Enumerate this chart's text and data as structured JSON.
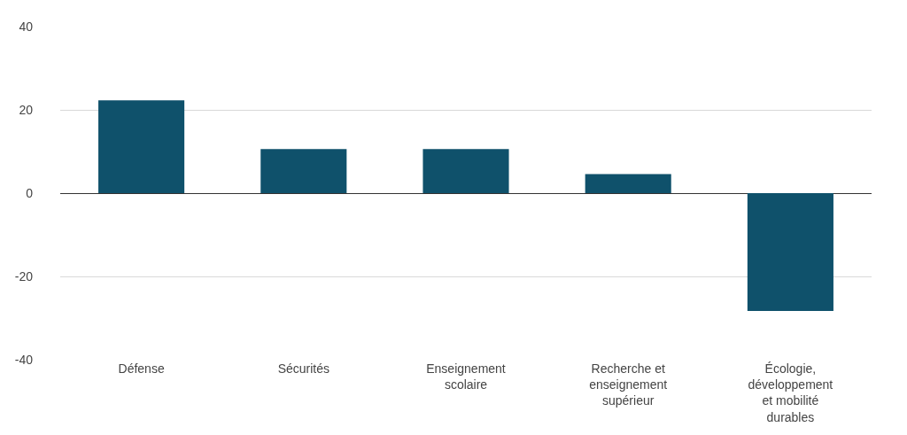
{
  "chart_data": {
    "type": "bar",
    "categories": [
      "Défense",
      "Sécurités",
      "Enseignement scolaire",
      "Recherche et enseignement supérieur",
      "Écologie, développement et mobilité durables"
    ],
    "values": [
      22.3,
      10.6,
      10.6,
      4.6,
      -28.3
    ],
    "color": "#0f516b",
    "ylim": [
      -40,
      40
    ],
    "yticks": [
      -40,
      -20,
      0,
      20,
      40
    ],
    "grid": "y"
  }
}
